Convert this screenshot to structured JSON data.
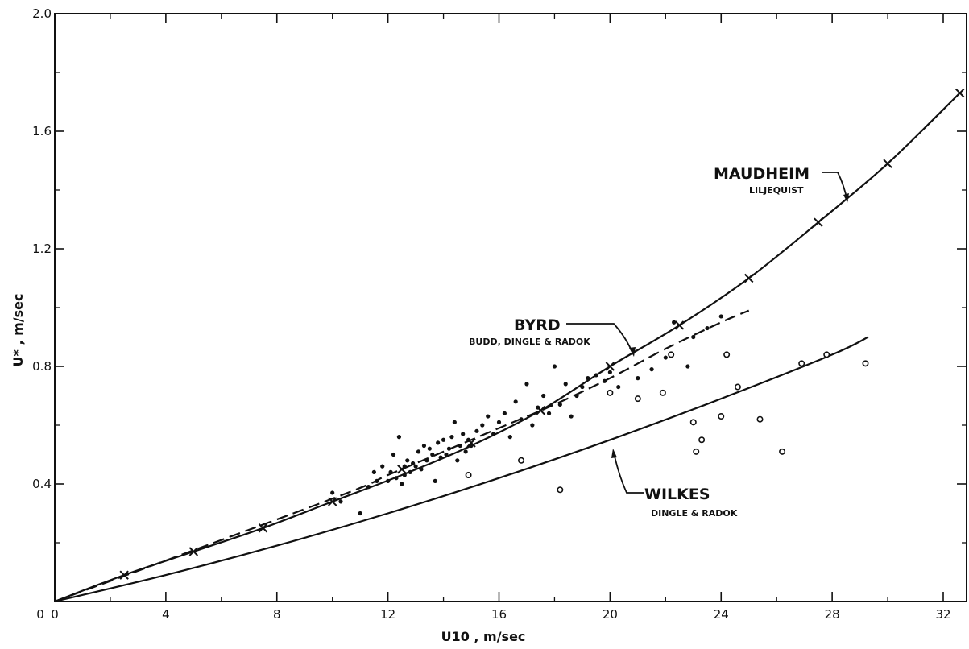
{
  "chart_data": {
    "type": "scatter",
    "xlabel": "U10 , m/sec",
    "ylabel": "U* , m/sec",
    "xlim": [
      0,
      33
    ],
    "ylim": [
      0,
      2.0
    ],
    "x_ticks": [
      0,
      4,
      8,
      12,
      16,
      20,
      24,
      28,
      32
    ],
    "x_tick_labels": [
      "0",
      "4",
      "8",
      "12",
      "16",
      "20",
      "24",
      "28",
      "32"
    ],
    "y_ticks": [
      0.4,
      0.8,
      1.2,
      1.6,
      2.0
    ],
    "y_tick_labels": [
      "0.4",
      "0.8",
      "1.2",
      "1.6",
      "2.0"
    ],
    "grid": false,
    "series": [
      {
        "name": "MAUDHEIM",
        "subtitle": "LILJEQUIST",
        "style": "solid line with x markers",
        "curve": {
          "x": [
            0,
            2.5,
            5,
            7.5,
            10,
            12.5,
            15,
            17.5,
            20,
            22.5,
            25,
            27.5,
            30,
            32.6
          ],
          "y": [
            0,
            0.09,
            0.17,
            0.25,
            0.34,
            0.43,
            0.53,
            0.65,
            0.8,
            0.94,
            1.1,
            1.29,
            1.49,
            1.73
          ]
        },
        "markers": {
          "x": [
            2.5,
            5,
            7.5,
            10,
            12.5,
            15,
            17.5,
            20,
            22.5,
            25,
            27.5,
            30,
            32.6
          ],
          "y": [
            0.09,
            0.17,
            0.25,
            0.34,
            0.45,
            0.54,
            0.65,
            0.8,
            0.94,
            1.1,
            1.29,
            1.49,
            1.73
          ]
        }
      },
      {
        "name": "BYRD",
        "subtitle": "BUDD, DINGLE & RADOK",
        "style": "dashed line with filled dots",
        "curve": {
          "x": [
            0,
            10,
            12,
            14,
            16,
            18,
            20,
            22,
            24,
            25
          ],
          "y": [
            0,
            0.35,
            0.43,
            0.51,
            0.59,
            0.67,
            0.76,
            0.86,
            0.95,
            0.99
          ]
        },
        "points": {
          "x": [
            10.0,
            10.3,
            11.0,
            11.3,
            11.5,
            11.6,
            11.8,
            12.0,
            12.1,
            12.2,
            12.3,
            12.4,
            12.5,
            12.6,
            12.6,
            12.7,
            12.8,
            12.9,
            13.0,
            13.1,
            13.2,
            13.3,
            13.4,
            13.5,
            13.6,
            13.7,
            13.8,
            13.9,
            14.0,
            14.1,
            14.2,
            14.3,
            14.4,
            14.5,
            14.6,
            14.7,
            14.8,
            14.9,
            15.0,
            15.2,
            15.4,
            15.6,
            15.8,
            16.0,
            16.2,
            16.4,
            16.6,
            16.8,
            17.0,
            17.2,
            17.4,
            17.6,
            17.8,
            18.0,
            18.2,
            18.4,
            18.6,
            18.8,
            19.0,
            19.2,
            19.5,
            19.8,
            20.0,
            20.3,
            21.0,
            21.5,
            22.0,
            22.3,
            22.8,
            23.0,
            23.5,
            24.0
          ],
          "y": [
            0.37,
            0.34,
            0.3,
            0.39,
            0.44,
            0.41,
            0.46,
            0.41,
            0.44,
            0.5,
            0.42,
            0.56,
            0.4,
            0.46,
            0.43,
            0.48,
            0.44,
            0.47,
            0.46,
            0.51,
            0.45,
            0.53,
            0.48,
            0.52,
            0.5,
            0.41,
            0.54,
            0.49,
            0.55,
            0.5,
            0.52,
            0.56,
            0.61,
            0.48,
            0.53,
            0.57,
            0.51,
            0.55,
            0.53,
            0.58,
            0.6,
            0.63,
            0.57,
            0.61,
            0.64,
            0.56,
            0.68,
            0.62,
            0.74,
            0.6,
            0.66,
            0.7,
            0.64,
            0.8,
            0.67,
            0.74,
            0.63,
            0.7,
            0.73,
            0.76,
            0.77,
            0.75,
            0.78,
            0.73,
            0.76,
            0.79,
            0.83,
            0.95,
            0.8,
            0.9,
            0.93,
            0.97
          ]
        }
      },
      {
        "name": "WILKES",
        "subtitle": "DINGLE & RADOK",
        "style": "solid line with open circles",
        "curve": {
          "x": [
            0,
            4,
            8,
            12,
            16,
            20,
            24,
            28,
            29.3
          ],
          "y": [
            0,
            0.09,
            0.19,
            0.3,
            0.42,
            0.55,
            0.69,
            0.84,
            0.9
          ]
        },
        "points": {
          "x": [
            14.9,
            16.8,
            18.2,
            20.0,
            21.0,
            21.9,
            22.2,
            23.0,
            23.1,
            23.3,
            24.0,
            24.2,
            24.6,
            25.4,
            26.2,
            26.9,
            27.8,
            29.2
          ],
          "y": [
            0.43,
            0.48,
            0.38,
            0.71,
            0.69,
            0.71,
            0.84,
            0.61,
            0.51,
            0.55,
            0.63,
            0.84,
            0.73,
            0.62,
            0.51,
            0.81,
            0.84,
            0.81
          ]
        }
      }
    ]
  }
}
